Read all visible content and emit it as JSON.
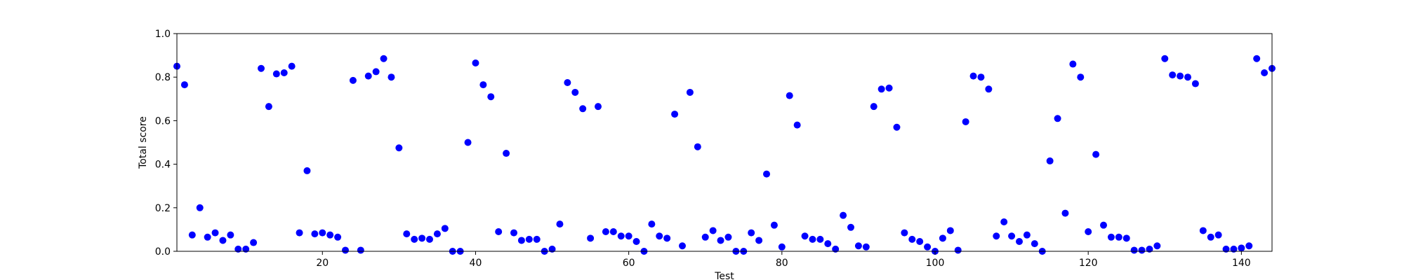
{
  "chart_data": {
    "type": "scatter",
    "xlabel": "Test",
    "ylabel": "Total score",
    "xlim": [
      1,
      144
    ],
    "ylim": [
      0,
      1.0
    ],
    "xticks": [
      20,
      40,
      60,
      80,
      100,
      120,
      140
    ],
    "xtick_labels": [
      "20",
      "40",
      "60",
      "80",
      "100",
      "120",
      "140"
    ],
    "yticks": [
      0,
      0.2,
      0.4,
      0.6,
      0.8,
      1.0
    ],
    "ytick_labels": [
      "0.0",
      "0.2",
      "0.4",
      "0.6",
      "0.8",
      "1.0"
    ],
    "grid": false,
    "marker_color": "#0000ff",
    "series": [
      {
        "x": [
          1,
          2,
          3,
          4,
          5,
          6,
          7,
          8,
          9,
          10,
          11,
          12,
          13,
          14,
          15,
          16,
          17,
          18,
          19,
          20,
          21,
          22,
          23,
          24,
          25,
          26,
          27,
          28,
          29,
          30,
          31,
          32,
          33,
          34,
          35,
          36,
          37,
          38,
          39,
          40,
          41,
          42,
          43,
          44,
          45,
          46,
          47,
          48,
          49,
          50,
          51,
          52,
          53,
          54,
          55,
          56,
          57,
          58,
          59,
          60,
          61,
          62,
          63,
          64,
          65,
          66,
          67,
          68,
          69,
          70,
          71,
          72,
          73,
          74,
          75,
          76,
          77,
          78,
          79,
          80,
          81,
          82,
          83,
          84,
          85,
          86,
          87,
          88,
          89,
          90,
          91,
          92,
          93,
          94,
          95,
          96,
          97,
          98,
          99,
          100,
          101,
          102,
          103,
          104,
          105,
          106,
          107,
          108,
          109,
          110,
          111,
          112,
          113,
          114,
          115,
          116,
          117,
          118,
          119,
          120,
          121,
          122,
          123,
          124,
          125,
          126,
          127,
          128,
          129,
          130,
          131,
          132,
          133,
          134,
          135,
          136,
          137,
          138,
          139,
          140,
          141,
          142,
          143,
          144
        ],
        "y": [
          0.85,
          0.765,
          0.075,
          0.2,
          0.065,
          0.085,
          0.05,
          0.075,
          0.01,
          0.01,
          0.04,
          0.84,
          0.665,
          0.815,
          0.82,
          0.85,
          0.085,
          0.37,
          0.08,
          0.085,
          0.075,
          0.065,
          0.005,
          0.785,
          0.005,
          0.805,
          0.825,
          0.885,
          0.8,
          0.475,
          0.08,
          0.055,
          0.06,
          0.055,
          0.08,
          0.105,
          0.0,
          0.0,
          0.5,
          0.865,
          0.765,
          0.71,
          0.09,
          0.45,
          0.085,
          0.05,
          0.055,
          0.055,
          0.0,
          0.01,
          0.125,
          0.775,
          0.73,
          0.655,
          0.06,
          0.665,
          0.09,
          0.09,
          0.07,
          0.07,
          0.045,
          0.0,
          0.125,
          0.07,
          0.06,
          0.63,
          0.025,
          0.73,
          0.48,
          0.065,
          0.095,
          0.05,
          0.065,
          0.0,
          0.0,
          0.085,
          0.05,
          0.355,
          0.12,
          0.02,
          0.715,
          0.58,
          0.07,
          0.055,
          0.055,
          0.035,
          0.01,
          0.165,
          0.11,
          0.025,
          0.02,
          0.665,
          0.745,
          0.75,
          0.57,
          0.085,
          0.055,
          0.045,
          0.02,
          0.0,
          0.06,
          0.095,
          0.005,
          0.595,
          0.805,
          0.8,
          0.745,
          0.07,
          0.135,
          0.07,
          0.045,
          0.075,
          0.035,
          0.0,
          0.415,
          0.61,
          0.175,
          0.86,
          0.8,
          0.09,
          0.445,
          0.12,
          0.065,
          0.065,
          0.06,
          0.005,
          0.005,
          0.01,
          0.025,
          0.885,
          0.81,
          0.805,
          0.8,
          0.77,
          0.095,
          0.065,
          0.075,
          0.01,
          0.01,
          0.015,
          0.025,
          0.885,
          0.82,
          0.84
        ]
      }
    ]
  }
}
